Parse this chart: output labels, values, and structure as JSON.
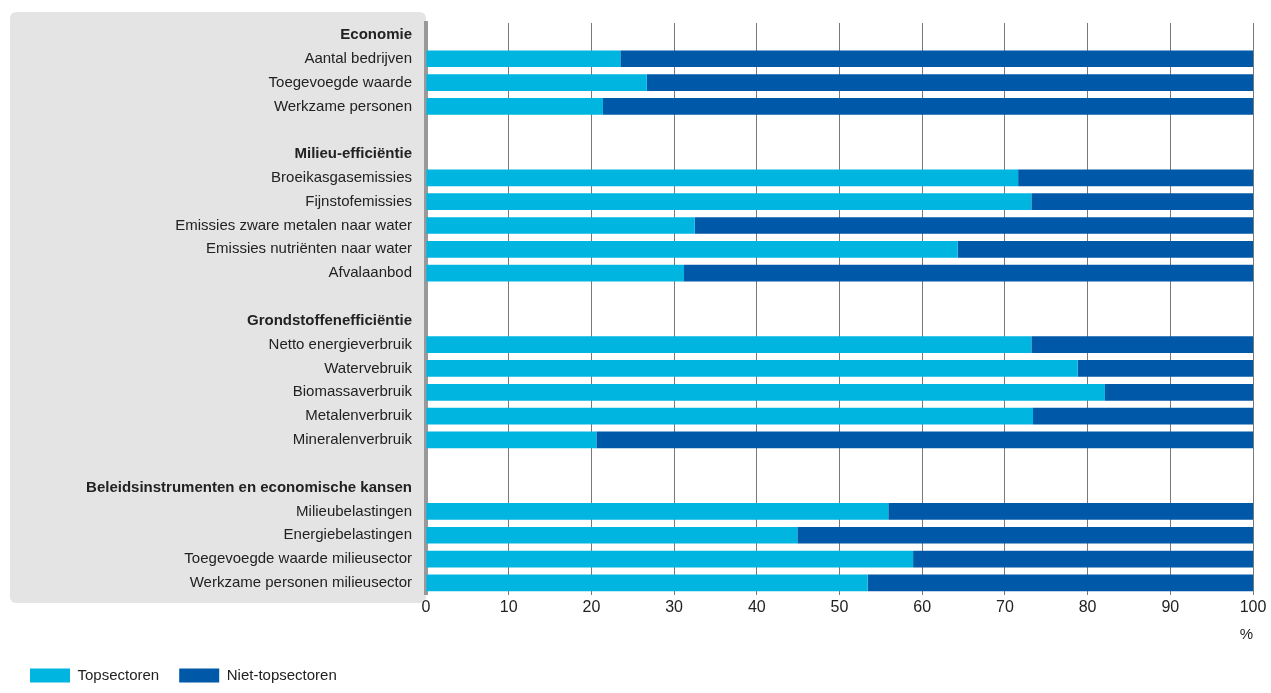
{
  "chart_data": {
    "type": "bar",
    "orientation": "horizontal",
    "stacked": true,
    "categories": [
      "Economie",
      "Aantal bedrijven",
      "Toegevoegde waarde",
      "Werkzame personen",
      null,
      "Milieu-efficiëntie",
      "Broeikasgasemissies",
      "Fijnstofemissies",
      "Emissies zware metalen naar water",
      "Emissies nutriënten naar water",
      "Afvalaanbod",
      null,
      "Grondstoffenefficiëntie",
      "Netto energieverbruik",
      "Watervebruik",
      "Biomassaverbruik",
      "Metalenverbruik",
      "Mineralenverbruik",
      null,
      "Beleidsinstrumenten en economische kansen",
      "Milieubelastingen",
      "Energiebelastingen",
      "Toegevoegde waarde milieusector",
      "Werkzame personen milieusector"
    ],
    "series": [
      {
        "name": "Topsectoren",
        "color": "#00b6e0",
        "values": [
          null,
          23.5,
          26.7,
          21.4,
          null,
          null,
          71.6,
          73.2,
          32.5,
          64.3,
          31.2,
          null,
          null,
          73.2,
          78.8,
          82.1,
          73.4,
          20.6,
          null,
          null,
          55.9,
          44.9,
          58.9,
          53.4
        ]
      },
      {
        "name": "Niet-topsectoren",
        "color": "#0059a8",
        "values": [
          null,
          76.5,
          73.3,
          78.6,
          null,
          null,
          28.4,
          26.8,
          67.5,
          35.7,
          68.8,
          null,
          null,
          26.8,
          21.2,
          17.9,
          26.6,
          79.4,
          null,
          null,
          44.1,
          55.1,
          41.1,
          46.6
        ]
      }
    ],
    "xlabel": "%",
    "xlim": [
      0,
      100
    ],
    "xticks": [
      0,
      10,
      20,
      30,
      40,
      50,
      60,
      70,
      80,
      90,
      100
    ],
    "grid": "x",
    "legend": "bottom left"
  }
}
